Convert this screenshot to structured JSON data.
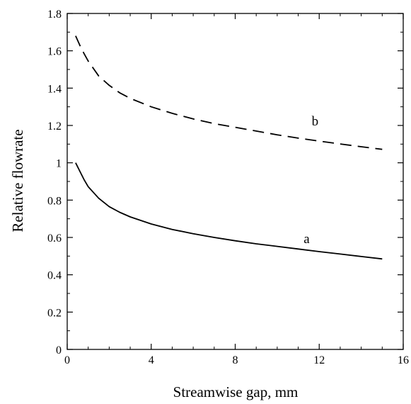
{
  "chart_data": {
    "type": "line",
    "xlabel": "Streamwise gap, mm",
    "ylabel": "Relative flowrate",
    "xlim": [
      0,
      16
    ],
    "ylim": [
      0,
      1.8
    ],
    "xticks": [
      0,
      4,
      8,
      12,
      16
    ],
    "yticks": [
      0,
      0.2,
      0.4,
      0.6,
      0.8,
      1,
      1.2,
      1.4,
      1.6,
      1.8
    ],
    "grid": false,
    "series": [
      {
        "name": "a",
        "style": "solid",
        "color": "#000000",
        "label_at": [
          11.4,
          0.57
        ],
        "x": [
          0.4,
          0.6,
          0.8,
          1.0,
          1.5,
          2.0,
          2.5,
          3.0,
          4.0,
          5.0,
          6.0,
          7.0,
          8.0,
          9.0,
          10.0,
          11.0,
          12.0,
          13.0,
          14.0,
          15.0
        ],
        "y": [
          1.0,
          0.955,
          0.91,
          0.872,
          0.81,
          0.765,
          0.735,
          0.71,
          0.672,
          0.643,
          0.62,
          0.6,
          0.582,
          0.566,
          0.552,
          0.538,
          0.524,
          0.511,
          0.498,
          0.485
        ]
      },
      {
        "name": "b",
        "style": "dashed",
        "color": "#000000",
        "label_at": [
          11.8,
          1.2
        ],
        "x": [
          0.4,
          0.6,
          0.8,
          1.0,
          1.5,
          2.0,
          2.5,
          3.0,
          4.0,
          5.0,
          6.0,
          7.0,
          8.0,
          9.0,
          10.0,
          11.0,
          12.0,
          13.0,
          14.0,
          15.0
        ],
        "y": [
          1.68,
          1.63,
          1.585,
          1.545,
          1.465,
          1.415,
          1.375,
          1.345,
          1.3,
          1.265,
          1.235,
          1.21,
          1.19,
          1.17,
          1.15,
          1.132,
          1.116,
          1.101,
          1.086,
          1.072
        ]
      }
    ]
  }
}
